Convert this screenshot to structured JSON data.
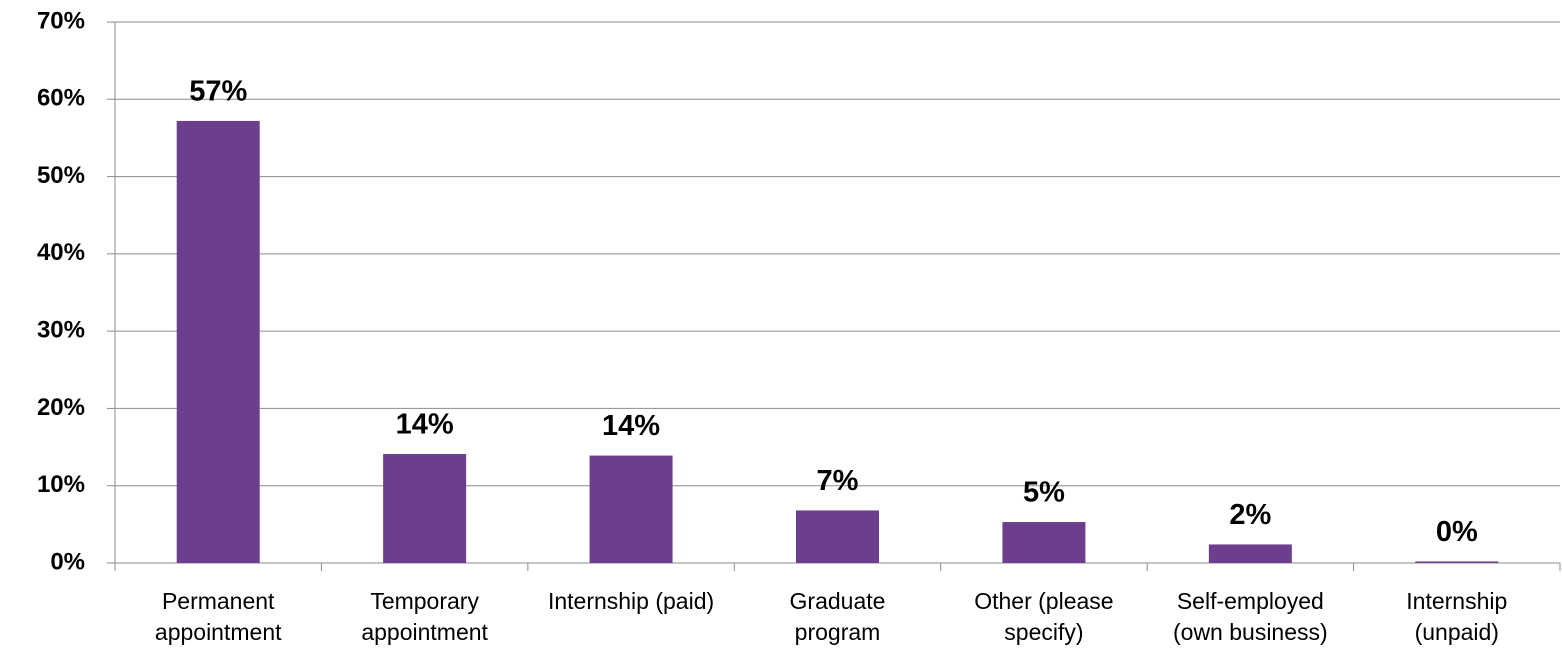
{
  "chart_data": {
    "type": "bar",
    "categories": [
      "Permanent appointment",
      "Temporary appointment",
      "Internship (paid)",
      "Graduate program",
      "Other (please specify)",
      "Self-employed (own business)",
      "Internship (unpaid)"
    ],
    "values": [
      57.2,
      14.1,
      13.9,
      6.8,
      5.3,
      2.4,
      0.2
    ],
    "value_labels": [
      "57%",
      "14%",
      "14%",
      "7%",
      "5%",
      "2%",
      "0%"
    ],
    "color": "#6d3d8e",
    "ylim": [
      0,
      70
    ],
    "yticks": [
      {
        "value": 0,
        "label": "0%"
      },
      {
        "value": 10,
        "label": "10%"
      },
      {
        "value": 20,
        "label": "20%"
      },
      {
        "value": 30,
        "label": "30%"
      },
      {
        "value": 40,
        "label": "40%"
      },
      {
        "value": 50,
        "label": "50%"
      },
      {
        "value": 60,
        "label": "60%"
      },
      {
        "value": 70,
        "label": "70%"
      }
    ],
    "grid": true
  }
}
